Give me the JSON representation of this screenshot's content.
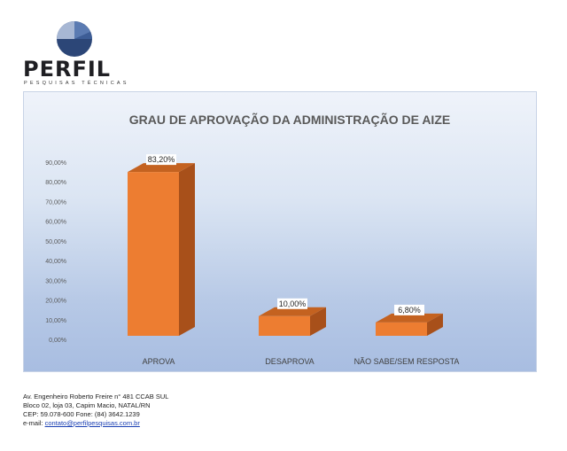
{
  "logo": {
    "name": "PERFIL",
    "tagline": "PESQUISAS TÉCNICAS",
    "colors": {
      "navy": "#2c4677",
      "blue": "#5b7bb2",
      "light": "#a7b7d4"
    }
  },
  "footer": {
    "address_line1": "Av. Engenheiro Roberto Freire n° 481 CCAB SUL",
    "address_line2": "Bloco 02, loja 03, Capim Macio, NATAL/RN",
    "address_line3": "CEP: 59.078-600 Fone: (84) 3642.1239",
    "email_label": "e-mail: ",
    "email": "contato@perfilpesquisas.com.br"
  },
  "chart_data": {
    "type": "bar",
    "title": "GRAU DE APROVAÇÃO DA ADMINISTRAÇÃO DE AIZE",
    "categories": [
      "APROVA",
      "DESAPROVA",
      "NÃO SABE/SEM RESPOSTA"
    ],
    "values": [
      83.2,
      10.0,
      6.8
    ],
    "data_labels": [
      "83,20%",
      "10,00%",
      "6,80%"
    ],
    "ylim": [
      0,
      90
    ],
    "yticks": [
      "0,00%",
      "10,00%",
      "20,00%",
      "30,00%",
      "40,00%",
      "50,00%",
      "60,00%",
      "70,00%",
      "80,00%",
      "90,00%"
    ],
    "xlabel": "",
    "ylabel": "",
    "grid": false,
    "legend": "none",
    "bar_style": "3d",
    "colors": {
      "front": "#ed7d31",
      "side": "#a8501a",
      "top": "#c46220"
    }
  }
}
